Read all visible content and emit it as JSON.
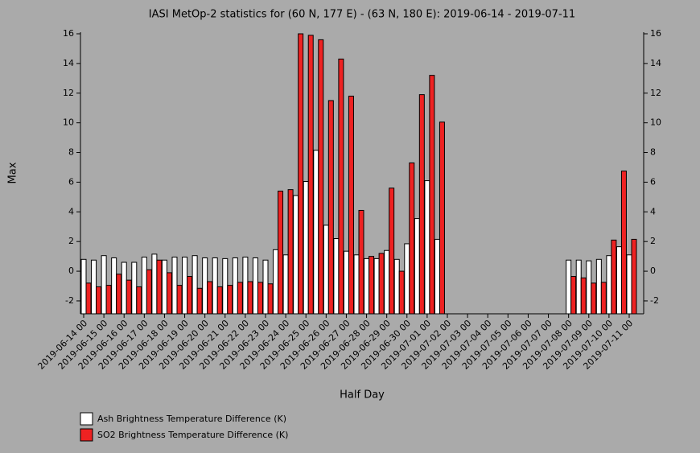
{
  "chart_data": {
    "type": "bar",
    "title": "IASI MetOp-2 statistics for (60 N, 177 E) - (63 N, 180 E): 2019-06-14 - 2019-07-11",
    "y_label": "Max",
    "x_label": "Half Day",
    "categories": [
      "2019-06-14 00",
      null,
      "2019-06-15 00",
      null,
      "2019-06-16 00",
      null,
      "2019-06-17 00",
      null,
      "2019-06-18 00",
      null,
      "2019-06-19 00",
      null,
      "2019-06-20 00",
      null,
      "2019-06-21 00",
      null,
      "2019-06-22 00",
      null,
      "2019-06-23 00",
      null,
      "2019-06-24 00",
      null,
      "2019-06-25 00",
      null,
      "2019-06-26 00",
      null,
      "2019-06-27 00",
      null,
      "2019-06-28 00",
      null,
      "2019-06-29 00",
      null,
      "2019-06-30 00",
      null,
      "2019-07-01 00",
      null,
      "2019-07-02 00",
      null,
      "2019-07-03 00",
      null,
      "2019-07-04 00",
      null,
      "2019-07-05 00",
      null,
      "2019-07-06 00",
      null,
      "2019-07-07 00",
      null,
      "2019-07-08 00",
      null,
      "2019-07-09 00",
      null,
      "2019-07-10 00",
      null,
      "2019-07-11 00"
    ],
    "series": [
      {
        "name": "Ash Brightness Temperature Difference (K)",
        "color": "#ffffff",
        "values": [
          0.8,
          0.75,
          1.05,
          0.9,
          0.6,
          0.6,
          0.95,
          1.15,
          0.75,
          0.95,
          0.95,
          1.05,
          0.9,
          0.9,
          0.85,
          0.9,
          0.95,
          0.9,
          0.75,
          1.45,
          1.1,
          5.1,
          6.05,
          8.15,
          3.1,
          2.2,
          1.35,
          1.1,
          0.85,
          0.85,
          1.4,
          0.8,
          1.85,
          3.55,
          6.1,
          2.15,
          null,
          null,
          null,
          null,
          null,
          null,
          null,
          null,
          null,
          null,
          null,
          null,
          0.75,
          0.75,
          0.7,
          0.8,
          1.05,
          1.65,
          1.1
        ]
      },
      {
        "name": "SO2 Brightness Temperature Difference (K)",
        "color": "#ee2222",
        "values": [
          -0.8,
          -1.05,
          -0.95,
          -0.2,
          -0.6,
          -1.05,
          0.1,
          0.75,
          -0.1,
          -0.95,
          -0.35,
          -1.15,
          -0.7,
          -1.05,
          -0.95,
          -0.75,
          -0.7,
          -0.75,
          -0.85,
          5.4,
          5.5,
          16,
          15.9,
          15.6,
          11.5,
          14.3,
          11.8,
          4.1,
          1.0,
          1.2,
          5.6,
          0,
          7.3,
          11.9,
          13.2,
          10.05,
          null,
          null,
          null,
          null,
          null,
          null,
          null,
          null,
          null,
          null,
          null,
          null,
          -0.35,
          -0.45,
          -0.8,
          -0.75,
          2.1,
          6.75,
          2.15
        ]
      }
    ],
    "ylim": [
      -2.87,
      16
    ],
    "yticks": [
      -2,
      0,
      2,
      4,
      6,
      8,
      10,
      12,
      14,
      16
    ]
  }
}
